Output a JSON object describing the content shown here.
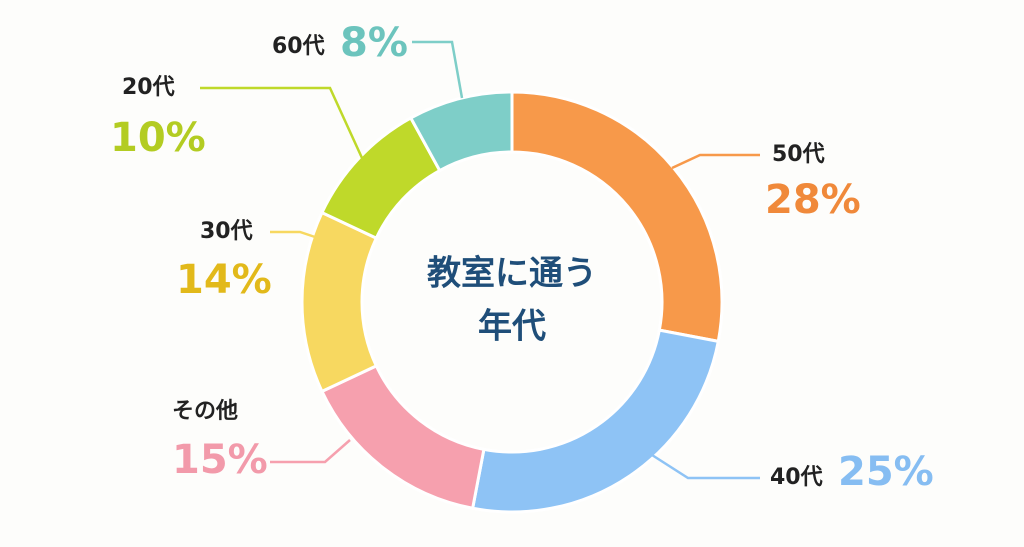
{
  "chart_data": {
    "type": "donut",
    "title": [
      "教室に通う",
      "年代"
    ],
    "categories": [
      "50代",
      "40代",
      "その他",
      "30代",
      "20代",
      "60代"
    ],
    "values": [
      28,
      25,
      15,
      14,
      10,
      8
    ],
    "value_labels": [
      "28%",
      "25%",
      "15%",
      "14%",
      "10%",
      "8%"
    ],
    "colors": [
      "#F7994A",
      "#8EC3F5",
      "#F6A0AE",
      "#F7D860",
      "#BFD92A",
      "#7ECEC8"
    ],
    "label_colors": [
      "#F0893A",
      "#86BDF2",
      "#F29AAA",
      "#E2B91A",
      "#B3CC22",
      "#6CC4BD"
    ]
  }
}
